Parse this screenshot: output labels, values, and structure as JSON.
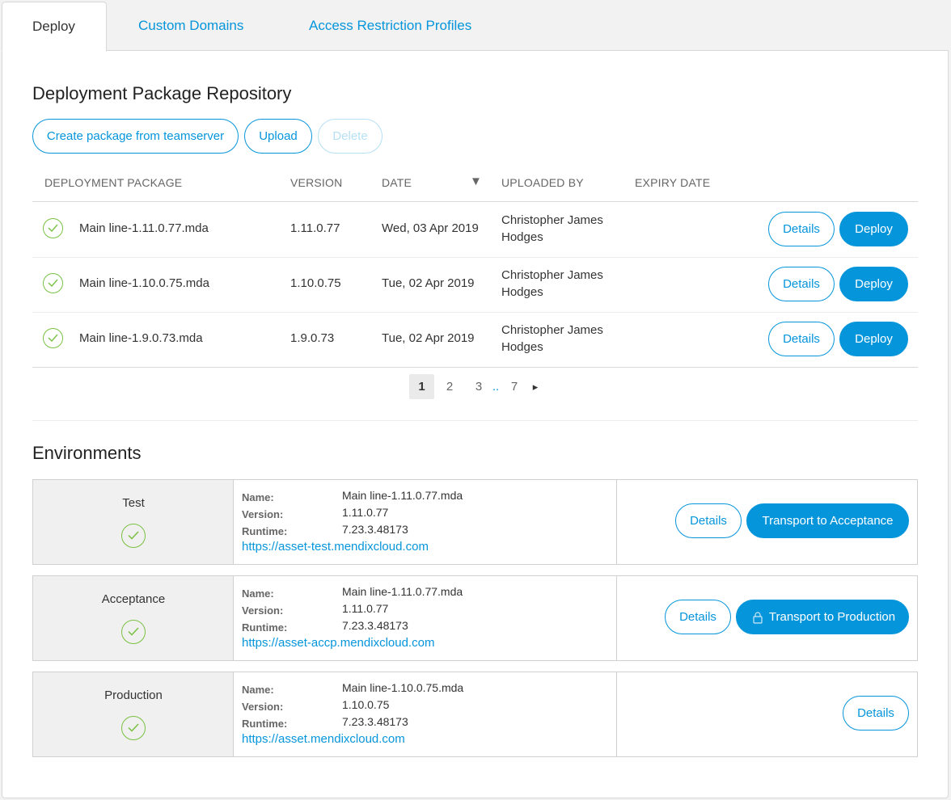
{
  "tabs": [
    "Deploy",
    "Custom Domains",
    "Access Restriction Profiles"
  ],
  "repository": {
    "title": "Deployment Package Repository",
    "buttons": {
      "create": "Create package from teamserver",
      "upload": "Upload",
      "delete": "Delete"
    },
    "columns": [
      "DEPLOYMENT PACKAGE",
      "VERSION",
      "DATE",
      "UPLOADED BY",
      "EXPIRY DATE"
    ],
    "sort_indicator": "▼",
    "rows": [
      {
        "package": "Main line-1.11.0.77.mda",
        "version": "1.11.0.77",
        "date": "Wed, 03 Apr 2019",
        "uploaded_by_1": "Christopher James",
        "uploaded_by_2": "Hodges",
        "expiry": "",
        "details": "Details",
        "deploy": "Deploy"
      },
      {
        "package": "Main line-1.10.0.75.mda",
        "version": "1.10.0.75",
        "date": "Tue, 02 Apr 2019",
        "uploaded_by_1": "Christopher James",
        "uploaded_by_2": "Hodges",
        "expiry": "",
        "details": "Details",
        "deploy": "Deploy"
      },
      {
        "package": "Main line-1.9.0.73.mda",
        "version": "1.9.0.73",
        "date": "Tue, 02 Apr 2019",
        "uploaded_by_1": "Christopher James",
        "uploaded_by_2": "Hodges",
        "expiry": "",
        "details": "Details",
        "deploy": "Deploy"
      }
    ],
    "pagination": {
      "pages": [
        "1",
        "2",
        "3"
      ],
      "ellipsis": "..",
      "last": "7",
      "next": "▸",
      "current": "1"
    }
  },
  "environments": {
    "title": "Environments",
    "labels": {
      "name": "Name:",
      "version": "Version:",
      "runtime": "Runtime:"
    },
    "items": [
      {
        "env": "Test",
        "name": "Main line-1.11.0.77.mda",
        "version": "1.11.0.77",
        "runtime": "7.23.3.48173",
        "url": "https://asset-test.mendixcloud.com",
        "details": "Details",
        "transport": "Transport to Acceptance"
      },
      {
        "env": "Acceptance",
        "name": "Main line-1.11.0.77.mda",
        "version": "1.11.0.77",
        "runtime": "7.23.3.48173",
        "url": "https://asset-accp.mendixcloud.com",
        "details": "Details",
        "transport": "Transport to Production"
      },
      {
        "env": "Production",
        "name": "Main line-1.10.0.75.mda",
        "version": "1.10.0.75",
        "runtime": "7.23.3.48173",
        "url": "https://asset.mendixcloud.com",
        "details": "Details"
      }
    ]
  },
  "colors": {
    "accent": "#0595db",
    "success": "#7ac143"
  }
}
